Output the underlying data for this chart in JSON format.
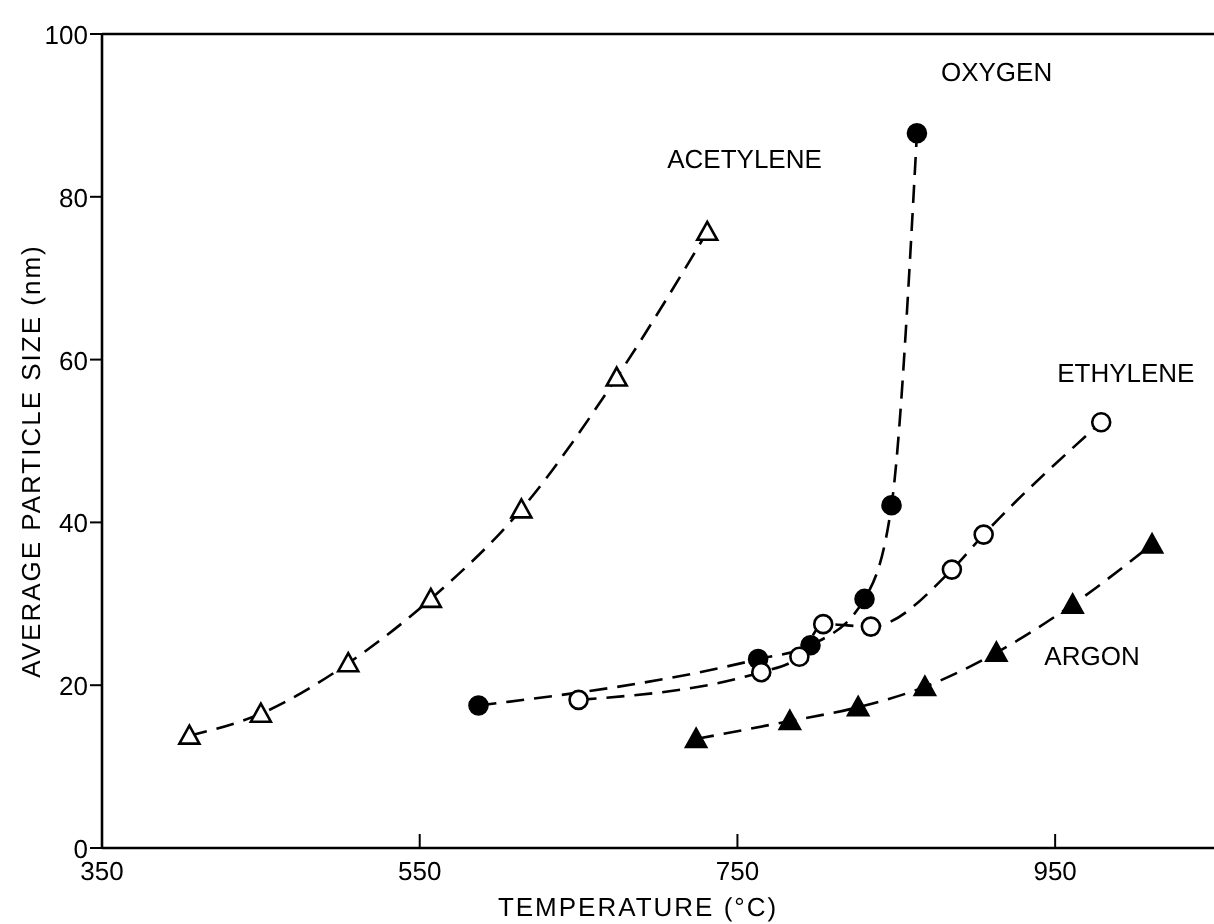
{
  "chart_data": {
    "type": "line",
    "xlabel": "TEMPERATURE (°C)",
    "ylabel": "AVERAGE PARTICLE SIZE (nm)",
    "xlim": [
      350,
      1050
    ],
    "xticks": [
      350,
      550,
      750,
      950
    ],
    "ylim": [
      0,
      100
    ],
    "yticks": [
      0,
      20,
      40,
      60,
      80,
      100
    ],
    "grid": false,
    "line_style": "dashed",
    "series": [
      {
        "name": "ACETYLENE",
        "color": "#000000",
        "marker": "triangle",
        "x": [
          405,
          450,
          505,
          557,
          614,
          674,
          731
        ],
        "values": [
          13.8,
          16.5,
          22.7,
          30.6,
          41.6,
          57.8,
          75.7
        ]
      },
      {
        "name": "OXYGEN",
        "color": "#000000",
        "marker": "circle",
        "x": [
          587,
          763,
          796,
          830,
          847,
          863
        ],
        "values": [
          17.5,
          23.2,
          24.9,
          30.6,
          42.1,
          87.8
        ]
      },
      {
        "name": "ETHYLENE",
        "color": "#000000",
        "marker": "circle",
        "x": [
          650,
          765,
          789,
          804,
          834,
          885,
          905,
          979
        ],
        "values": [
          18.2,
          21.6,
          23.5,
          27.5,
          27.2,
          34.2,
          38.5,
          52.3
        ]
      },
      {
        "name": "ARGON",
        "color": "#000000",
        "marker": "triangle",
        "x": [
          724,
          783,
          826,
          868,
          913,
          961,
          1011
        ],
        "values": [
          13.4,
          15.6,
          17.3,
          19.8,
          24,
          29.9,
          37.3
        ]
      }
    ]
  }
}
